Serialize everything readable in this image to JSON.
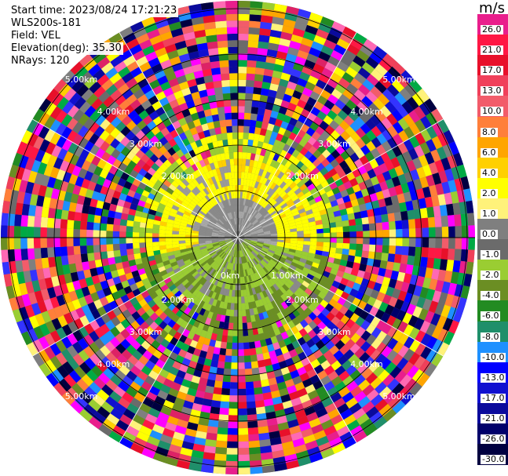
{
  "header": {
    "start_time": "Start time: 2023/08/24 17:21:23",
    "instrument": "WLS200s-181",
    "field": "Field: VEL",
    "elevation": "Elevation(deg): 35.30",
    "nrays": "NRays: 120"
  },
  "colorbar": {
    "unit": "m/s",
    "levels": [
      {
        "label": "26.0",
        "color": "#e91e8c"
      },
      {
        "label": "21.0",
        "color": "#ff1744"
      },
      {
        "label": "17.0",
        "color": "#e8102a"
      },
      {
        "label": "13.0",
        "color": "#f0405a"
      },
      {
        "label": "10.0",
        "color": "#f25c6a"
      },
      {
        "label": "8.0",
        "color": "#ff7f3a"
      },
      {
        "label": "6.0",
        "color": "#ffa500"
      },
      {
        "label": "4.0",
        "color": "#ffd000"
      },
      {
        "label": "2.0",
        "color": "#ffff00"
      },
      {
        "label": "1.0",
        "color": "#fff27a"
      },
      {
        "label": "0.0",
        "color": "#7f7f7f"
      },
      {
        "label": "-1.0",
        "color": "#6b6b6b"
      },
      {
        "label": "-2.0",
        "color": "#9acd32"
      },
      {
        "label": "-4.0",
        "color": "#6b8e23"
      },
      {
        "label": "-6.0",
        "color": "#228b22"
      },
      {
        "label": "-8.0",
        "color": "#1f8f6a"
      },
      {
        "label": "-10.0",
        "color": "#1e90ff"
      },
      {
        "label": "-13.0",
        "color": "#0000ff"
      },
      {
        "label": "-17.0",
        "color": "#1010d0"
      },
      {
        "label": "-21.0",
        "color": "#0a0a9c"
      },
      {
        "label": "-26.0",
        "color": "#00006b"
      },
      {
        "label": "-30.0",
        "color": "#000040"
      }
    ]
  },
  "range_rings": {
    "labels": [
      "1.00km",
      "2.00km",
      "3.00km",
      "4.00km",
      "5.00km"
    ],
    "partial_labels": [
      "0km"
    ]
  },
  "map_layers": {
    "inner_field": "near-range velocities: yellow, gray, olive",
    "outer_field": "far-range velocities: mixed multicolor noise"
  }
}
